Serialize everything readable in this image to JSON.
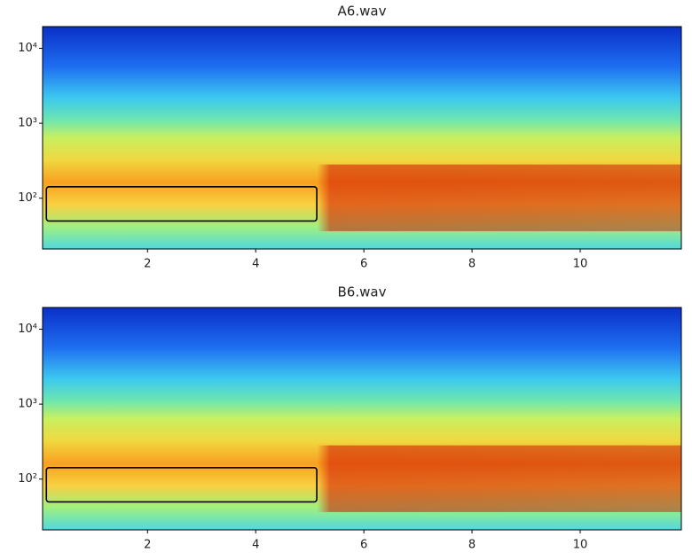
{
  "chart_data": [
    {
      "type": "spectrogram",
      "title": "A6.wav",
      "colormap": "jet",
      "log_y": true,
      "xlim": [
        0.06,
        11.87
      ],
      "xticks": [
        2,
        4,
        6,
        8,
        10
      ],
      "ylim": [
        21,
        19500
      ],
      "yticks": [
        {
          "value": 100,
          "label": "10²"
        },
        {
          "value": 1000,
          "label": "10³"
        },
        {
          "value": 10000,
          "label": "10⁴"
        }
      ],
      "highlight": {
        "x": [
          0.13,
          5.13
        ],
        "y": [
          49.6,
          142
        ],
        "color": "#000000"
      }
    },
    {
      "type": "spectrogram",
      "title": "B6.wav",
      "colormap": "jet",
      "log_y": true,
      "xlim": [
        0.06,
        11.87
      ],
      "xticks": [
        2,
        4,
        6,
        8,
        10
      ],
      "ylim": [
        21,
        19500
      ],
      "yticks": [
        {
          "value": 100,
          "label": "10²"
        },
        {
          "value": 1000,
          "label": "10³"
        },
        {
          "value": 10000,
          "label": "10⁴"
        }
      ],
      "highlight": {
        "x": [
          0.13,
          5.13
        ],
        "y": [
          49.6,
          142
        ],
        "color": "#000000"
      }
    }
  ]
}
